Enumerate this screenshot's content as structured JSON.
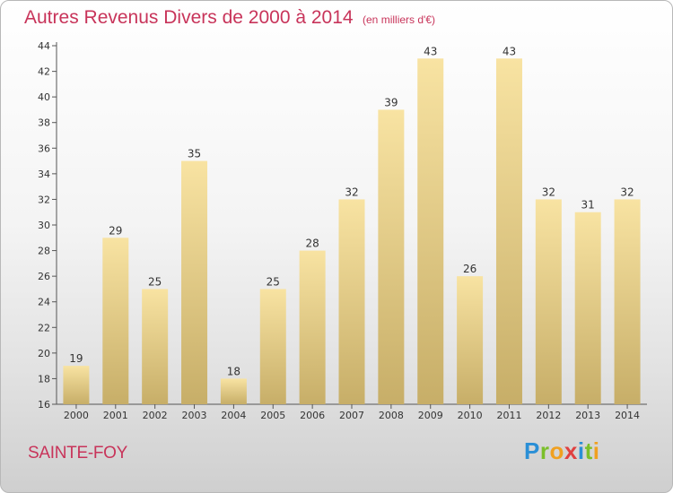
{
  "title": "Autres Revenus Divers de 2000 à 2014",
  "unit_note": "(en milliers d'€)",
  "location": "SAINTE-FOY",
  "brand": {
    "letters": [
      "P",
      "r",
      "o",
      "x",
      "i",
      "t",
      "i"
    ],
    "colors": [
      "#2a8fd6",
      "#7bbf2a",
      "#f0a020",
      "#e04040",
      "#2a8fd6",
      "#7bbf2a",
      "#f0a020"
    ]
  },
  "colors": {
    "accent": "#c8345a",
    "bar_top": "#f8e3a2",
    "bar_bottom": "#c7ae68"
  },
  "chart_data": {
    "type": "bar",
    "title": "Autres Revenus Divers de 2000 à 2014",
    "subtitle": "(en milliers d'€)",
    "xlabel": "",
    "ylabel": "",
    "categories": [
      "2000",
      "2001",
      "2002",
      "2003",
      "2004",
      "2005",
      "2006",
      "2007",
      "2008",
      "2009",
      "2010",
      "2011",
      "2012",
      "2013",
      "2014"
    ],
    "values": [
      19,
      29,
      25,
      35,
      18,
      25,
      28,
      32,
      39,
      43,
      26,
      43,
      32,
      31,
      32
    ],
    "ylim": [
      16,
      44
    ],
    "yticks": [
      16,
      18,
      20,
      22,
      24,
      26,
      28,
      30,
      32,
      34,
      36,
      38,
      40,
      42,
      44
    ],
    "grid": false,
    "data_labels": true
  }
}
